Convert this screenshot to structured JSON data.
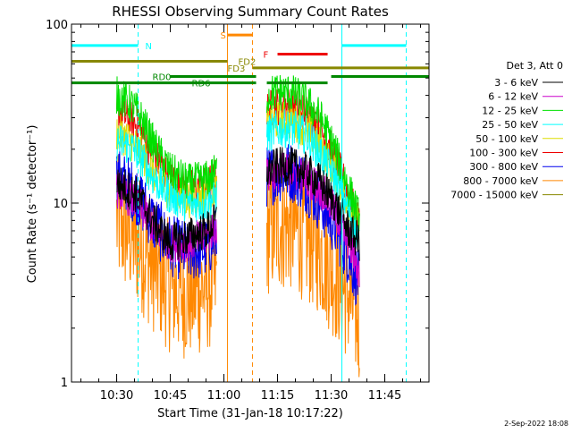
{
  "chart_data": {
    "type": "line",
    "title": "RHESSI Observing Summary Count Rates",
    "xlabel": "Start Time (31-Jan-18 10:17:22)",
    "ylabel": "Count Rate (s⁻¹ detector⁻¹)",
    "ylim": [
      1,
      100
    ],
    "yscale": "log",
    "xlim": [
      "10:17:22",
      "11:57:22"
    ],
    "y_ticks": [
      {
        "value": 1,
        "label": "1"
      },
      {
        "value": 10,
        "label": "10"
      },
      {
        "value": 100,
        "label": "100"
      }
    ],
    "x_ticks": [
      {
        "value": "10:30",
        "label": "10:30"
      },
      {
        "value": "10:45",
        "label": "10:45"
      },
      {
        "value": "11:00",
        "label": "11:00"
      },
      {
        "value": "11:15",
        "label": "11:15"
      },
      {
        "value": "11:30",
        "label": "11:30"
      },
      {
        "value": "11:45",
        "label": "11:45"
      }
    ],
    "legend_title": "Det 3, Att 0",
    "legend_position": "right",
    "series": [
      {
        "name": "3 - 6 keV",
        "color": "#000000",
        "segments": [
          {
            "x": [
              "10:30",
              "10:33",
              "10:36",
              "10:40",
              "10:45",
              "10:50",
              "10:55",
              "10:58"
            ],
            "y": [
              13,
              12,
              11,
              8,
              6,
              6.5,
              7,
              8
            ]
          },
          {
            "x": [
              "11:12",
              "11:15",
              "11:19",
              "11:23",
              "11:27",
              "11:31",
              "11:35",
              "11:38"
            ],
            "y": [
              15,
              16,
              16,
              15,
              13,
              10,
              7,
              6
            ]
          }
        ]
      },
      {
        "name": "6 - 12 keV",
        "color": "#cc00cc",
        "segments": [
          {
            "x": [
              "10:30",
              "10:33",
              "10:36",
              "10:40",
              "10:45",
              "10:50",
              "10:55",
              "10:58"
            ],
            "y": [
              12,
              11,
              10,
              7.5,
              6,
              6,
              6.5,
              7.5
            ]
          },
          {
            "x": [
              "11:12",
              "11:15",
              "11:19",
              "11:23",
              "11:27",
              "11:31",
              "11:35",
              "11:38"
            ],
            "y": [
              14,
              15,
              15,
              14,
              12,
              9,
              6,
              4
            ]
          }
        ]
      },
      {
        "name": "12 - 25 keV",
        "color": "#00e000",
        "segments": [
          {
            "x": [
              "10:30",
              "10:33",
              "10:36",
              "10:40",
              "10:45",
              "10:50",
              "10:55",
              "10:58"
            ],
            "y": [
              40,
              37,
              32,
              22,
              15,
              13,
              13.5,
              15
            ]
          },
          {
            "x": [
              "11:12",
              "11:15",
              "11:19",
              "11:23",
              "11:27",
              "11:31",
              "11:35",
              "11:38"
            ],
            "y": [
              40,
              42,
              41,
              37,
              30,
              20,
              12,
              8
            ]
          }
        ]
      },
      {
        "name": "25 - 50 keV",
        "color": "#00ffff",
        "segments": [
          {
            "x": [
              "10:30",
              "10:33",
              "10:36",
              "10:40",
              "10:45",
              "10:50",
              "10:55",
              "10:58"
            ],
            "y": [
              22,
              21,
              19,
              14,
              11,
              10,
              10,
              11
            ]
          },
          {
            "x": [
              "11:12",
              "11:15",
              "11:19",
              "11:23",
              "11:27",
              "11:31",
              "11:35",
              "11:38"
            ],
            "y": [
              24,
              26,
              26,
              24,
              19,
              14,
              9,
              6
            ]
          }
        ]
      },
      {
        "name": "50 - 100 keV",
        "color": "#dddd00",
        "segments": [
          {
            "x": [
              "10:30",
              "10:33",
              "10:36",
              "10:40",
              "10:45",
              "10:50",
              "10:55",
              "10:58"
            ],
            "y": [
              25,
              23,
              20,
              15,
              11.5,
              10.5,
              11,
              12
            ]
          },
          {
            "x": [
              "11:12",
              "11:15",
              "11:19",
              "11:23",
              "11:27",
              "11:31",
              "11:35",
              "11:38"
            ],
            "y": [
              27,
              29,
              29,
              26,
              21,
              15,
              10,
              7
            ]
          }
        ]
      },
      {
        "name": "100 - 300 keV",
        "color": "#ee0000",
        "segments": [
          {
            "x": [
              "10:30",
              "10:33",
              "10:36",
              "10:40",
              "10:45",
              "10:50",
              "10:55",
              "10:58"
            ],
            "y": [
              32,
              30,
              27,
              19,
              13.5,
              12,
              12.5,
              14
            ]
          },
          {
            "x": [
              "11:12",
              "11:15",
              "11:19",
              "11:23",
              "11:27",
              "11:31",
              "11:35",
              "11:38"
            ],
            "y": [
              33,
              35,
              35,
              32,
              26,
              18,
              11,
              7.5
            ]
          }
        ]
      },
      {
        "name": "300 - 800 keV",
        "color": "#0000ee",
        "segments": [
          {
            "x": [
              "10:30",
              "10:33",
              "10:36",
              "10:40",
              "10:45",
              "10:50",
              "10:55",
              "10:58"
            ],
            "y": [
              14,
              12.5,
              11,
              8,
              5.8,
              5.3,
              5.6,
              6.5
            ]
          },
          {
            "x": [
              "11:12",
              "11:15",
              "11:19",
              "11:23",
              "11:27",
              "11:31",
              "11:35",
              "11:38"
            ],
            "y": [
              14,
              15,
              15,
              13,
              10,
              7.5,
              5,
              3.5
            ]
          }
        ]
      },
      {
        "name": "800 - 7000 keV",
        "color": "#ff8800",
        "segments": [
          {
            "x": [
              "10:30",
              "10:33",
              "10:36",
              "10:40",
              "10:45",
              "10:50",
              "10:55",
              "10:58"
            ],
            "y": [
              8,
              7,
              6,
              4.5,
              3.4,
              3.1,
              3.4,
              3.8
            ]
          },
          {
            "x": [
              "11:12",
              "11:15",
              "11:19",
              "11:23",
              "11:27",
              "11:31",
              "11:35",
              "11:38"
            ],
            "y": [
              7,
              7.5,
              7.5,
              6.5,
              5.5,
              4,
              3,
              2.2
            ]
          }
        ]
      },
      {
        "name": "7000 - 15000 keV",
        "color": "#888800",
        "segments": []
      }
    ],
    "annotations": {
      "vertical_lines": [
        {
          "x": "10:17:22",
          "color": "#00ffff",
          "style": "solid"
        },
        {
          "x": "10:36",
          "color": "#00ffff",
          "style": "dashed"
        },
        {
          "x": "11:01",
          "color": "#ff8800",
          "style": "solid"
        },
        {
          "x": "11:08",
          "color": "#ff8800",
          "style": "dashed"
        },
        {
          "x": "11:33",
          "color": "#00ffff",
          "style": "solid"
        },
        {
          "x": "11:51",
          "color": "#00ffff",
          "style": "dashed"
        }
      ],
      "bars": [
        {
          "label": "N",
          "color": "#00ffff",
          "y": 76,
          "start": "10:17:22",
          "end": "10:36",
          "label_at": "10:38"
        },
        {
          "label": "",
          "color": "#00ffff",
          "y": 76,
          "start": "11:33",
          "end": "11:51"
        },
        {
          "label": "S",
          "color": "#ff8800",
          "y": 87,
          "start": "11:01",
          "end": "11:08",
          "label_at": "10:59"
        },
        {
          "label": "F",
          "color": "#ee0000",
          "y": 68,
          "start": "11:15",
          "end": "11:29",
          "label_at": "11:11"
        },
        {
          "label": "FD2",
          "color": "#888800",
          "y": 62,
          "start": "10:17:22",
          "end": "11:01",
          "label_at": "11:04"
        },
        {
          "label": "FD3",
          "color": "#888800",
          "y": 57,
          "start": "11:08",
          "end": "11:57:22",
          "label_at": "11:01"
        },
        {
          "label": "RD0",
          "color": "#008800",
          "y": 51,
          "start": "10:45",
          "end": "11:09",
          "label_at": "10:40"
        },
        {
          "label": "",
          "color": "#008800",
          "y": 51,
          "start": "11:30",
          "end": "11:57:22"
        },
        {
          "label": "RD6",
          "color": "#008800",
          "y": 47,
          "start": "10:17:22",
          "end": "11:09",
          "label_at": "10:51"
        },
        {
          "label": "",
          "color": "#008800",
          "y": 47,
          "start": "11:12",
          "end": "11:29"
        }
      ]
    }
  },
  "footer": {
    "date_stamp": "2-Sep-2022 18:08"
  }
}
